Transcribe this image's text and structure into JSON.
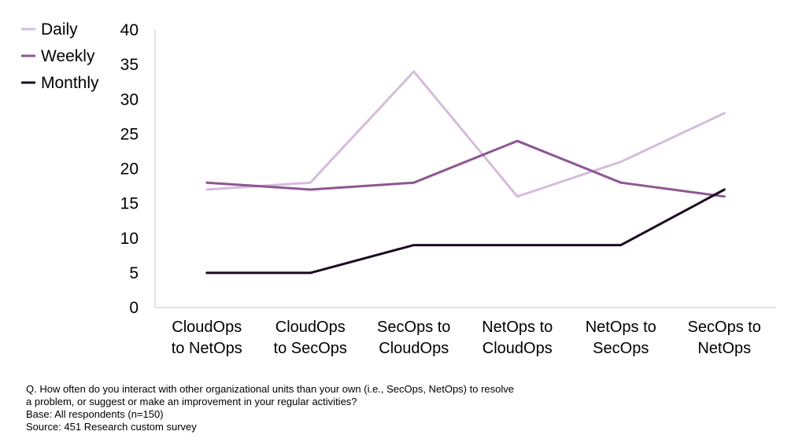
{
  "chart_data": {
    "type": "line",
    "title": "",
    "xlabel": "",
    "ylabel": "",
    "ylim": [
      0,
      40
    ],
    "y_ticks": [
      0,
      5,
      10,
      15,
      20,
      25,
      30,
      35,
      40
    ],
    "grid": false,
    "legend_placement": "top-left",
    "categories": [
      [
        "CloudOps",
        "to NetOps"
      ],
      [
        "CloudOps",
        "to SecOps"
      ],
      [
        "SecOps to",
        "CloudOps"
      ],
      [
        "NetOps to",
        "CloudOps"
      ],
      [
        "NetOps to",
        "SecOps"
      ],
      [
        "SecOps to",
        "NetOps"
      ]
    ],
    "series": [
      {
        "name": "Daily",
        "color": "#d4bcdb",
        "values": [
          17,
          18,
          34,
          16,
          21,
          28
        ]
      },
      {
        "name": "Weekly",
        "color": "#8e5693",
        "values": [
          18,
          17,
          18,
          24,
          18,
          16
        ]
      },
      {
        "name": "Monthly",
        "color": "#1b0a1f",
        "values": [
          5,
          5,
          9,
          9,
          9,
          17
        ]
      }
    ],
    "axis_color": "#d9d9d9"
  },
  "footnotes": {
    "question_line1": "Q. How often do you interact with other organizational units than your own (i.e., SecOps, NetOps) to resolve",
    "question_line2": "a problem, or suggest or make an improvement in your regular activities?",
    "base": "Base: All respondents (n=150)",
    "source": "Source: 451 Research custom survey"
  }
}
